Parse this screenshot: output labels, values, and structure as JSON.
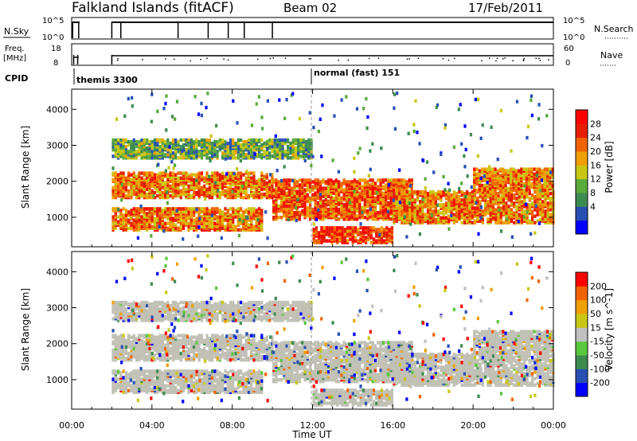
{
  "header": {
    "station": "Falkland Islands (fitACF)",
    "beam": "Beam 02",
    "date": "17/Feb/2011"
  },
  "strips": {
    "nsky_label": "N.Sky",
    "nsky_ticks": [
      "10^5",
      "10^0"
    ],
    "nsearch_label": "N.Search",
    "nsearch_ticks": [
      "10^5",
      "10^0"
    ],
    "freq_label_1": "Freq.",
    "freq_label_2": "[MHz]",
    "freq_ticks": [
      "18",
      "8"
    ],
    "nave_label": "Nave",
    "nave_ticks": [
      "60",
      "0"
    ],
    "cpid_label": "CPID",
    "cpid_modes": [
      {
        "label": "themis 3300",
        "start_hour": 0.05
      },
      {
        "label": "normal (fast) 151",
        "start_hour": 12.0
      }
    ]
  },
  "x_axis": {
    "label": "Time UT",
    "ticks": [
      "00:00",
      "04:00",
      "08:00",
      "12:00",
      "16:00",
      "20:00",
      "00:00"
    ],
    "tick_hours": [
      0,
      4,
      8,
      12,
      16,
      20,
      24
    ]
  },
  "chart_data": [
    {
      "type": "heatmap",
      "name": "power-panel",
      "xlabel": "Time UT",
      "ylabel": "Slant Range [km]",
      "xlim": [
        0,
        24
      ],
      "ylim": [
        180,
        4560
      ],
      "y_ticks": [
        "4000",
        "3000",
        "2000",
        "1000"
      ],
      "y_tick_values": [
        4000,
        3000,
        2000,
        1000
      ],
      "colorbar": {
        "label": "Power [dB]",
        "range": [
          0,
          32
        ],
        "ticks": [
          "28",
          "24",
          "20",
          "16",
          "12",
          "8",
          "4"
        ],
        "tick_values": [
          28,
          24,
          20,
          16,
          12,
          8,
          4
        ],
        "colors": [
          "#0000ff",
          "#2850b4",
          "#3c8c50",
          "#5aaa3c",
          "#c8c814",
          "#f0a000",
          "#f06400",
          "#e61e00",
          "#ff0000"
        ]
      },
      "echo_bands_km": [
        {
          "t_start": 2.0,
          "t_end": 10.0,
          "range_min": 1500,
          "range_max": 2200,
          "mean_power": 22
        },
        {
          "t_start": 2.0,
          "t_end": 9.5,
          "range_min": 600,
          "range_max": 1200,
          "mean_power": 22
        },
        {
          "t_start": 2.0,
          "t_end": 12.0,
          "range_min": 2600,
          "range_max": 3100,
          "mean_power": 12
        },
        {
          "t_start": 10.0,
          "t_end": 17.0,
          "range_min": 900,
          "range_max": 2000,
          "mean_power": 24
        },
        {
          "t_start": 12.0,
          "t_end": 16.0,
          "range_min": 250,
          "range_max": 700,
          "mean_power": 26
        },
        {
          "t_start": 16.0,
          "t_end": 24.0,
          "range_min": 800,
          "range_max": 1700,
          "mean_power": 22
        },
        {
          "t_start": 20.0,
          "t_end": 24.0,
          "range_min": 1700,
          "range_max": 2300,
          "mean_power": 22
        }
      ]
    },
    {
      "type": "heatmap",
      "name": "velocity-panel",
      "xlabel": "Time UT",
      "ylabel": "Slant Range [km]",
      "xlim": [
        0,
        24
      ],
      "ylim": [
        180,
        4560
      ],
      "y_ticks": [
        "4000",
        "3000",
        "2000",
        "1000"
      ],
      "y_tick_values": [
        4000,
        3000,
        2000,
        1000
      ],
      "colorbar": {
        "label": "Velocity [m s^-1]",
        "range": [
          -240,
          240
        ],
        "ticks": [
          "200",
          "100",
          "50",
          "15",
          "-15",
          "-50",
          "-100",
          "-200"
        ],
        "tick_values": [
          200,
          100,
          50,
          15,
          -15,
          -50,
          -100,
          -200
        ],
        "colors": [
          "#0000ff",
          "#2850b4",
          "#3c8c50",
          "#5ac83c",
          "#c0c0c0",
          "#c8c814",
          "#f0a000",
          "#f06400",
          "#ff0000"
        ]
      },
      "ground_scatter_color": "#c0c0b4"
    }
  ]
}
